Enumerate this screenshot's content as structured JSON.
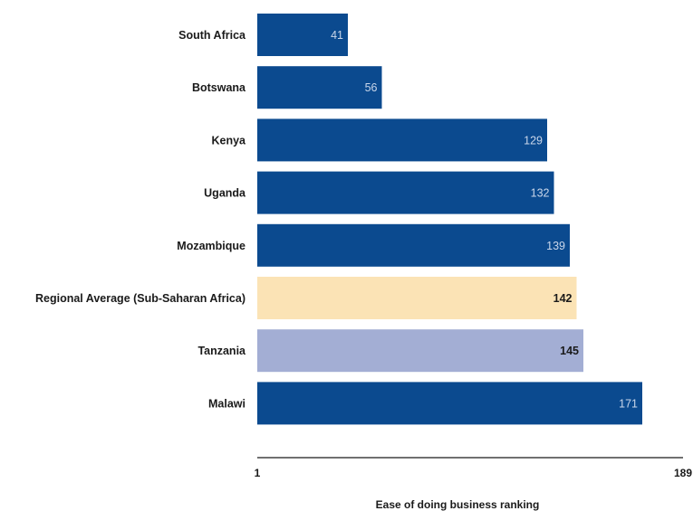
{
  "chart_data": {
    "type": "bar",
    "orientation": "horizontal",
    "categories": [
      "South Africa",
      "Botswana",
      "Kenya",
      "Uganda",
      "Mozambique",
      "Regional Average (Sub-Saharan Africa)",
      "Tanzania",
      "Malawi"
    ],
    "values": [
      41,
      56,
      129,
      132,
      139,
      142,
      145,
      171
    ],
    "bar_colors": [
      "#0b4a8f",
      "#0b4a8f",
      "#0b4a8f",
      "#0b4a8f",
      "#0b4a8f",
      "#fbe3b5",
      "#a3aed4",
      "#0b4a8f"
    ],
    "value_label_colors": [
      "#c9d6ea",
      "#c9d6ea",
      "#c9d6ea",
      "#c9d6ea",
      "#c9d6ea",
      "#1a1a1a",
      "#1a1a1a",
      "#c9d6ea"
    ],
    "xlim": [
      1,
      189
    ],
    "xticks": [
      "1",
      "189"
    ],
    "xlabel": "Ease of doing business ranking",
    "grid": false,
    "legend": "none"
  }
}
